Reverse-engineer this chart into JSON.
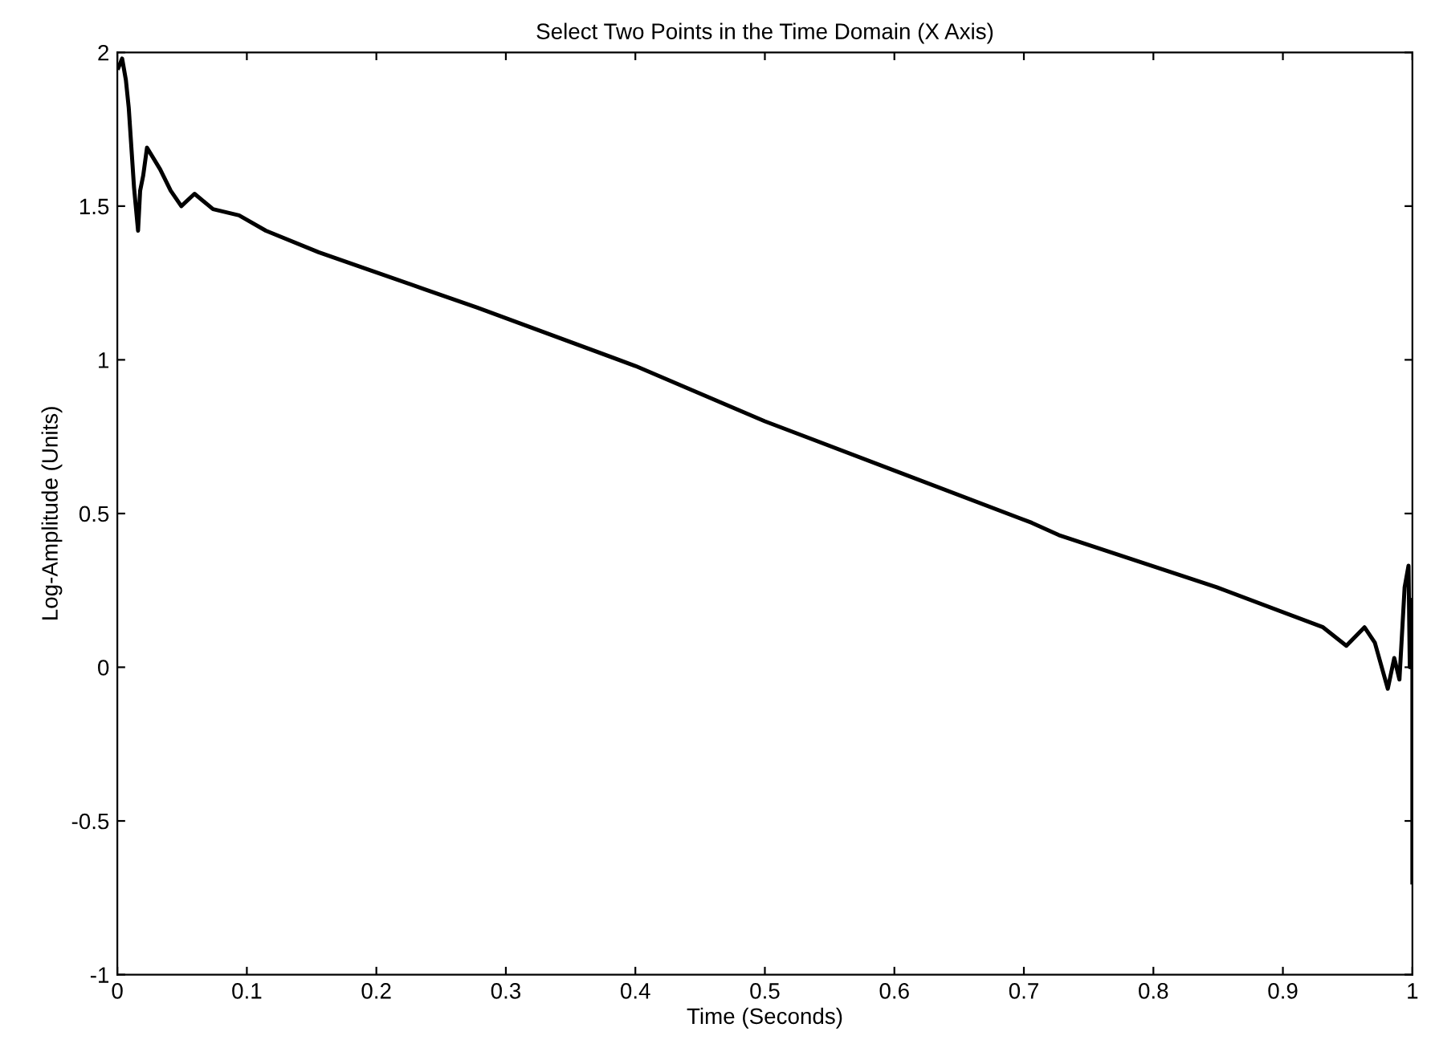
{
  "chart_data": {
    "type": "line",
    "title": "Select Two Points in the Time Domain (X Axis)",
    "xlabel": "Time (Seconds)",
    "ylabel": "Log-Amplitude (Units)",
    "xlim": [
      0,
      1
    ],
    "ylim": [
      -1,
      2
    ],
    "xticks": [
      0,
      0.1,
      0.2,
      0.3,
      0.4,
      0.5,
      0.6,
      0.7,
      0.8,
      0.9,
      1
    ],
    "yticks": [
      -1,
      -0.5,
      0,
      0.5,
      1,
      1.5,
      2
    ],
    "grid": false,
    "legend": false,
    "series": [
      {
        "color": "#000000",
        "x": [
          0.0008,
          0.0037,
          0.0066,
          0.0088,
          0.0129,
          0.016,
          0.0176,
          0.02,
          0.0229,
          0.033,
          0.0412,
          0.0494,
          0.0596,
          0.0739,
          0.094,
          0.1147,
          0.1555,
          0.1963,
          0.237,
          0.278,
          0.4,
          0.5,
          0.6,
          0.706,
          0.727,
          0.849,
          0.931,
          0.949,
          0.963,
          0.971,
          0.981,
          0.986,
          0.99,
          0.994,
          0.997,
          0.998,
          1.0,
          1.0
        ],
        "values": [
          1.95,
          1.98,
          1.91,
          1.82,
          1.56,
          1.42,
          1.55,
          1.6,
          1.69,
          1.62,
          1.55,
          1.5,
          1.54,
          1.49,
          1.47,
          1.42,
          1.35,
          1.29,
          1.23,
          1.17,
          0.98,
          0.8,
          0.64,
          0.47,
          0.43,
          0.26,
          0.13,
          0.07,
          0.13,
          0.08,
          -0.07,
          0.03,
          -0.04,
          0.26,
          0.33,
          0.0,
          0.22,
          -0.7
        ]
      }
    ]
  }
}
